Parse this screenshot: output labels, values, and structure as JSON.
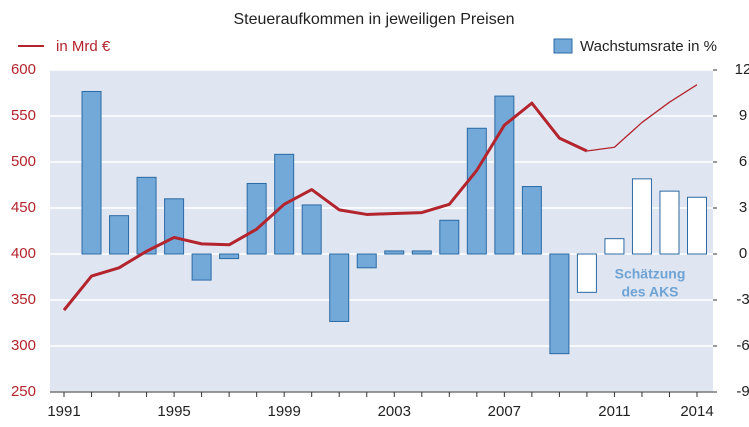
{
  "chart_data": {
    "type": "bar-line",
    "title": "Steueraufkommen in jeweiligen Preisen",
    "annotation": [
      "Schätzung",
      "des AKS"
    ],
    "categories": [
      "1991",
      null,
      null,
      null,
      "1995",
      null,
      null,
      null,
      "1999",
      null,
      null,
      null,
      "2003",
      null,
      null,
      null,
      "2007",
      null,
      null,
      null,
      "2011",
      null,
      null,
      "2014"
    ],
    "estimated": [
      false,
      false,
      false,
      false,
      false,
      false,
      false,
      false,
      false,
      false,
      false,
      false,
      false,
      false,
      false,
      false,
      false,
      false,
      false,
      true,
      true,
      true,
      true,
      true
    ],
    "series": [
      {
        "name": "in Mrd €",
        "type": "line",
        "axis": "y",
        "color": "#b3242d",
        "values": [
          339,
          376,
          385,
          403,
          418,
          411,
          410,
          427,
          454,
          470,
          448,
          443,
          444,
          445,
          454,
          491,
          540,
          564,
          526,
          512,
          516,
          543,
          565,
          584
        ]
      },
      {
        "name": "Wachstumsrate in %",
        "type": "bar",
        "axis": "y2",
        "color": "#72a9d9",
        "edge_color": "#2c6aa3",
        "values": [
          null,
          10.6,
          2.5,
          5.0,
          3.6,
          -1.7,
          -0.3,
          4.6,
          6.5,
          3.2,
          -4.4,
          -0.9,
          0.2,
          0.2,
          2.2,
          8.2,
          10.3,
          4.4,
          -6.5,
          -2.5,
          1.0,
          4.9,
          4.1,
          3.7
        ]
      }
    ],
    "ylim": [
      250,
      600
    ],
    "yticks": [
      250,
      300,
      350,
      400,
      450,
      500,
      550,
      600
    ],
    "y2lim": [
      -9,
      12
    ],
    "y2ticks": [
      -9,
      -6,
      -3,
      0,
      3,
      6,
      9,
      12
    ],
    "grid": true
  }
}
